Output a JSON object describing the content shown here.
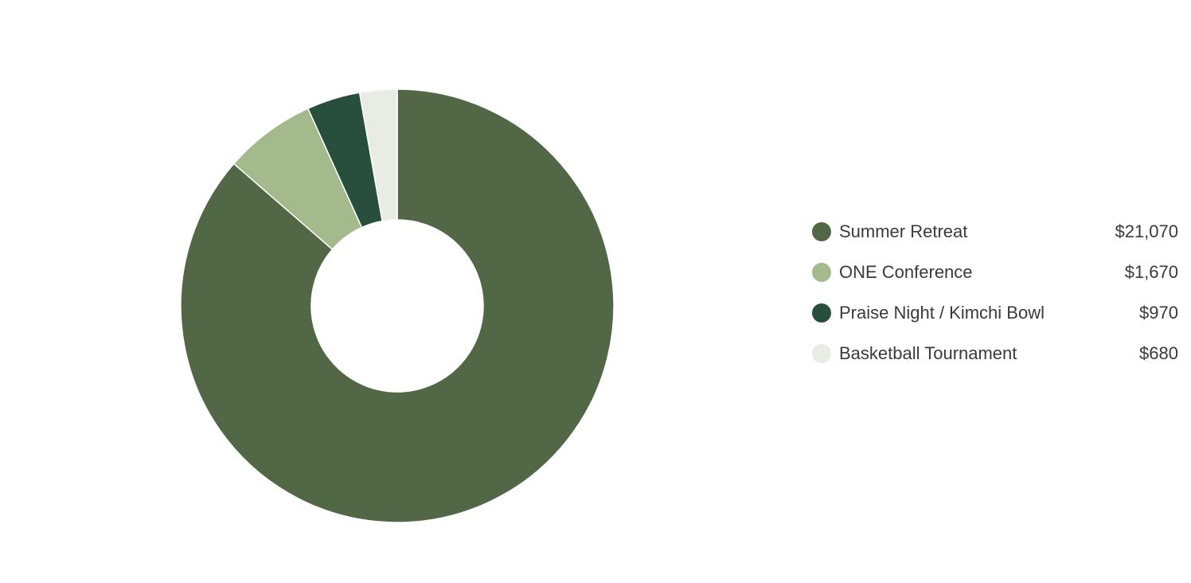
{
  "chart_data": {
    "type": "pie",
    "variant": "donut",
    "start_angle": "top",
    "direction": "clockwise",
    "slice_border_color": "#ffffff",
    "legend_position": "right",
    "slices": [
      {
        "label": "Summer Retreat",
        "value": 21070,
        "display_value": "$21,070",
        "color": "#516745"
      },
      {
        "label": "ONE Conference",
        "value": 1670,
        "display_value": "$1,670",
        "color": "#a5ba8c"
      },
      {
        "label": "Praise Night / Kimchi Bowl",
        "value": 970,
        "display_value": "$970",
        "color": "#284f3d"
      },
      {
        "label": "Basketball Tournament",
        "value": 680,
        "display_value": "$680",
        "color": "#e8ece3"
      }
    ]
  }
}
